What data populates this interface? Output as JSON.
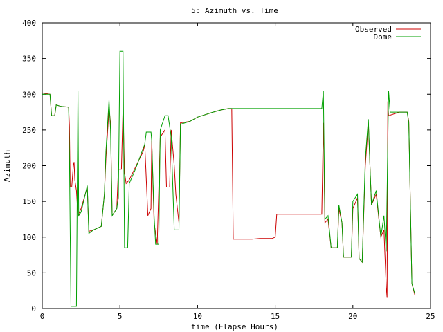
{
  "chart_data": {
    "type": "line",
    "title": "5: Azimuth vs. Time",
    "xlabel": "time (Elapse Hours)",
    "ylabel": "Azimuth",
    "xlim": [
      0,
      25
    ],
    "ylim": [
      0,
      400
    ],
    "x_ticks": [
      "0",
      "5",
      "10",
      "15",
      "20",
      "25"
    ],
    "y_ticks": [
      "0",
      "50",
      "100",
      "150",
      "200",
      "250",
      "300",
      "350",
      "400"
    ],
    "legend_position": "top-right",
    "grid": false,
    "series": [
      {
        "name": "Observed",
        "color": "#cc0000",
        "points": [
          [
            0.0,
            302
          ],
          [
            0.5,
            300
          ],
          [
            0.6,
            270
          ],
          [
            0.8,
            270
          ],
          [
            0.9,
            285
          ],
          [
            1.2,
            283
          ],
          [
            1.7,
            282
          ],
          [
            1.75,
            255
          ],
          [
            1.8,
            170
          ],
          [
            1.9,
            170
          ],
          [
            2.0,
            200
          ],
          [
            2.05,
            205
          ],
          [
            2.1,
            180
          ],
          [
            2.2,
            165
          ],
          [
            2.3,
            130
          ],
          [
            2.5,
            140
          ],
          [
            2.9,
            170
          ],
          [
            3.0,
            108
          ],
          [
            3.3,
            110
          ],
          [
            3.8,
            115
          ],
          [
            4.0,
            160
          ],
          [
            4.1,
            210
          ],
          [
            4.3,
            280
          ],
          [
            4.4,
            260
          ],
          [
            4.5,
            130
          ],
          [
            4.8,
            140
          ],
          [
            4.9,
            195
          ],
          [
            5.1,
            195
          ],
          [
            5.2,
            280
          ],
          [
            5.3,
            190
          ],
          [
            5.4,
            175
          ],
          [
            5.6,
            180
          ],
          [
            6.5,
            220
          ],
          [
            6.6,
            230
          ],
          [
            6.8,
            130
          ],
          [
            7.0,
            140
          ],
          [
            7.05,
            235
          ],
          [
            7.2,
            120
          ],
          [
            7.4,
            90
          ],
          [
            7.6,
            240
          ],
          [
            7.9,
            250
          ],
          [
            8.0,
            170
          ],
          [
            8.2,
            170
          ],
          [
            8.3,
            250
          ],
          [
            8.5,
            200
          ],
          [
            8.6,
            160
          ],
          [
            8.8,
            120
          ],
          [
            8.9,
            260
          ],
          [
            9.5,
            262
          ],
          [
            10.0,
            268
          ],
          [
            11.0,
            275
          ],
          [
            11.5,
            278
          ],
          [
            12.0,
            280
          ],
          [
            12.2,
            280
          ],
          [
            12.3,
            97
          ],
          [
            13.5,
            97
          ],
          [
            14.0,
            98
          ],
          [
            14.8,
            98
          ],
          [
            15.0,
            100
          ],
          [
            15.1,
            132
          ],
          [
            18.0,
            132
          ],
          [
            18.1,
            260
          ],
          [
            18.2,
            120
          ],
          [
            18.4,
            125
          ],
          [
            18.6,
            85
          ],
          [
            19.0,
            85
          ],
          [
            19.1,
            140
          ],
          [
            19.3,
            120
          ],
          [
            19.4,
            72
          ],
          [
            19.9,
            72
          ],
          [
            20.0,
            140
          ],
          [
            20.3,
            155
          ],
          [
            20.4,
            70
          ],
          [
            20.6,
            65
          ],
          [
            20.8,
            200
          ],
          [
            21.0,
            260
          ],
          [
            21.1,
            200
          ],
          [
            21.2,
            145
          ],
          [
            21.5,
            160
          ],
          [
            21.8,
            100
          ],
          [
            22.0,
            110
          ],
          [
            22.15,
            30
          ],
          [
            22.2,
            15
          ],
          [
            22.25,
            290
          ],
          [
            22.3,
            270
          ],
          [
            23.0,
            275
          ],
          [
            23.5,
            275
          ],
          [
            23.6,
            262
          ],
          [
            23.8,
            35
          ],
          [
            24.0,
            18
          ]
        ]
      },
      {
        "name": "Dome",
        "color": "#00a000",
        "points": [
          [
            0.0,
            300
          ],
          [
            0.5,
            300
          ],
          [
            0.6,
            270
          ],
          [
            0.8,
            270
          ],
          [
            0.9,
            285
          ],
          [
            1.2,
            283
          ],
          [
            1.7,
            282
          ],
          [
            1.75,
            215
          ],
          [
            1.85,
            3
          ],
          [
            2.1,
            3
          ],
          [
            2.2,
            3
          ],
          [
            2.3,
            305
          ],
          [
            2.35,
            130
          ],
          [
            2.5,
            135
          ],
          [
            2.9,
            172
          ],
          [
            3.0,
            105
          ],
          [
            3.3,
            110
          ],
          [
            3.8,
            115
          ],
          [
            4.0,
            160
          ],
          [
            4.1,
            220
          ],
          [
            4.3,
            292
          ],
          [
            4.4,
            250
          ],
          [
            4.5,
            130
          ],
          [
            4.8,
            140
          ],
          [
            4.9,
            155
          ],
          [
            5.0,
            360
          ],
          [
            5.2,
            360
          ],
          [
            5.3,
            85
          ],
          [
            5.5,
            85
          ],
          [
            5.6,
            175
          ],
          [
            6.0,
            195
          ],
          [
            6.6,
            230
          ],
          [
            6.7,
            247
          ],
          [
            7.0,
            247
          ],
          [
            7.05,
            235
          ],
          [
            7.2,
            130
          ],
          [
            7.3,
            90
          ],
          [
            7.5,
            90
          ],
          [
            7.6,
            250
          ],
          [
            7.9,
            270
          ],
          [
            8.1,
            270
          ],
          [
            8.3,
            240
          ],
          [
            8.5,
            110
          ],
          [
            8.8,
            110
          ],
          [
            8.9,
            258
          ],
          [
            9.5,
            262
          ],
          [
            10.0,
            268
          ],
          [
            11.0,
            275
          ],
          [
            11.5,
            278
          ],
          [
            12.0,
            280
          ],
          [
            15.0,
            280
          ],
          [
            18.0,
            280
          ],
          [
            18.1,
            305
          ],
          [
            18.2,
            125
          ],
          [
            18.4,
            130
          ],
          [
            18.6,
            85
          ],
          [
            19.0,
            85
          ],
          [
            19.1,
            145
          ],
          [
            19.3,
            120
          ],
          [
            19.4,
            72
          ],
          [
            19.9,
            72
          ],
          [
            20.0,
            150
          ],
          [
            20.3,
            160
          ],
          [
            20.4,
            70
          ],
          [
            20.6,
            65
          ],
          [
            20.8,
            210
          ],
          [
            21.0,
            265
          ],
          [
            21.1,
            200
          ],
          [
            21.2,
            145
          ],
          [
            21.5,
            165
          ],
          [
            21.8,
            100
          ],
          [
            22.0,
            130
          ],
          [
            22.15,
            80
          ],
          [
            22.3,
            305
          ],
          [
            22.4,
            275
          ],
          [
            23.0,
            275
          ],
          [
            23.5,
            275
          ],
          [
            23.6,
            260
          ],
          [
            23.8,
            35
          ],
          [
            24.0,
            20
          ]
        ]
      }
    ]
  }
}
